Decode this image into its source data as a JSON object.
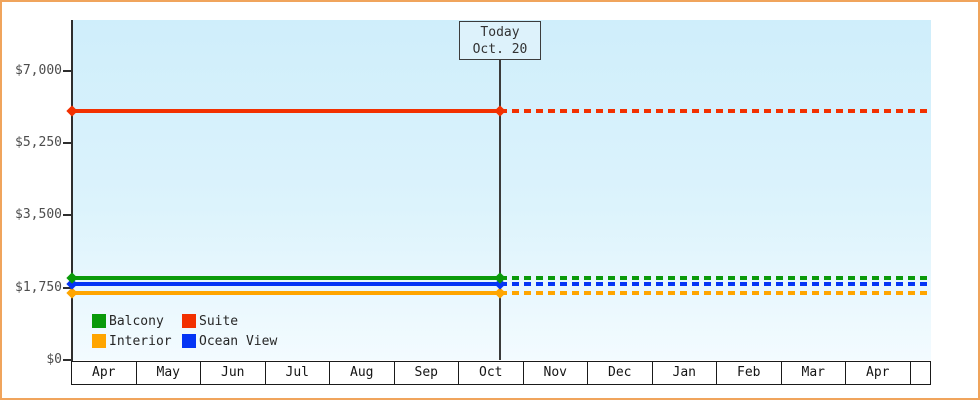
{
  "colors": {
    "page_border": "#f0a45c",
    "plot_bg_top": "#cfeefb",
    "plot_bg_bottom": "#f3fbff",
    "axis": "#2e2e2e",
    "today_box_fill": "#ddf2fb"
  },
  "chart_data": {
    "type": "line",
    "title": "",
    "description": "Cruise cabin price history: flat price lines per cabin category, solid up to today then dashed (projected) to the right",
    "y_axis": {
      "label": "",
      "range": [
        0,
        8200
      ],
      "ticks": [
        {
          "label": "$0",
          "value": 0
        },
        {
          "label": "$1,750",
          "value": 1750
        },
        {
          "label": "$3,500",
          "value": 3500
        },
        {
          "label": "$5,250",
          "value": 5250
        },
        {
          "label": "$7,000",
          "value": 7000
        }
      ],
      "grid": false
    },
    "x_axis": {
      "months": [
        "Apr",
        "May",
        "Jun",
        "Jul",
        "Aug",
        "Sep",
        "Oct",
        "Nov",
        "Dec",
        "Jan",
        "Feb",
        "Mar",
        "Apr"
      ]
    },
    "today_marker": {
      "line1": "Today",
      "line2": "Oct. 20",
      "month": "Oct",
      "day": 20,
      "days_in_month": 31
    },
    "line_styles": {
      "past": "solid",
      "future": "dashed"
    },
    "series": [
      {
        "name": "Suite",
        "color": "#f23000",
        "value": 6020
      },
      {
        "name": "Balcony",
        "color": "#0a9a0a",
        "value": 1990
      },
      {
        "name": "Ocean View",
        "color": "#0535f5",
        "value": 1830
      },
      {
        "name": "Interior",
        "color": "#ffa500",
        "value": 1615
      }
    ],
    "legend": {
      "position": "bottom-left-inside",
      "items": [
        {
          "name": "Balcony",
          "color": "#0a9a0a"
        },
        {
          "name": "Suite",
          "color": "#f23000"
        },
        {
          "name": "Interior",
          "color": "#ffa500"
        },
        {
          "name": "Ocean View",
          "color": "#0535f5"
        }
      ]
    }
  }
}
